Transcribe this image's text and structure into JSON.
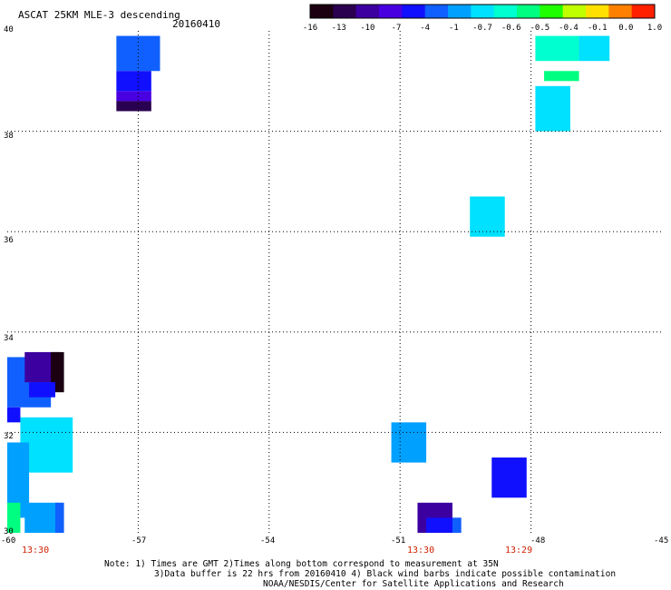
{
  "title": "ASCAT 25KM MLE-3 descending",
  "date": "20160410",
  "colorbar": {
    "colors": [
      "#1a0010",
      "#2a0050",
      "#3c00a0",
      "#4800e0",
      "#1010ff",
      "#1060ff",
      "#00a0ff",
      "#00e0ff",
      "#00ffd0",
      "#00ff80",
      "#20ff00",
      "#c0ff00",
      "#ffe000",
      "#ff8000",
      "#ff2000"
    ],
    "labels": [
      "-16",
      "-13",
      "-10",
      "-7",
      "-4",
      "-1",
      "-0.7",
      "-0.6",
      "-0.5",
      "-0.4",
      "-0.1",
      "0.0",
      "1.0"
    ]
  },
  "axes": {
    "lat_labels": [
      "40",
      "38",
      "36",
      "34",
      "32",
      "30"
    ],
    "lon_labels": [
      "-60",
      "-57",
      "-54",
      "-51",
      "-48",
      "-45"
    ]
  },
  "times": [
    "13:30",
    "13:30",
    "13:29"
  ],
  "notes": [
    "Note: 1) Times are GMT 2)Times along bottom correspond to measurement at 35N",
    "3)Data buffer is 22 hrs from 20160410 4) Black wind barbs indicate possible contamination",
    "NOAA/NESDIS/Center for Satellite Applications and Research"
  ],
  "data_cells": [
    {
      "lon": -57.5,
      "lat": 39.9,
      "w": 1.0,
      "h": 0.7,
      "color": "#1060ff"
    },
    {
      "lon": -57.5,
      "lat": 39.2,
      "w": 0.8,
      "h": 0.4,
      "color": "#1010ff"
    },
    {
      "lon": -57.5,
      "lat": 38.8,
      "w": 0.8,
      "h": 0.2,
      "color": "#4800e0"
    },
    {
      "lon": -57.5,
      "lat": 38.6,
      "w": 0.8,
      "h": 0.2,
      "color": "#2a0050"
    },
    {
      "lon": -47.9,
      "lat": 39.9,
      "w": 1.0,
      "h": 0.5,
      "color": "#00ffd0"
    },
    {
      "lon": -46.9,
      "lat": 39.9,
      "w": 0.7,
      "h": 0.5,
      "color": "#00e0ff"
    },
    {
      "lon": -47.7,
      "lat": 39.2,
      "w": 0.8,
      "h": 0.2,
      "color": "#00ff80"
    },
    {
      "lon": -47.9,
      "lat": 38.9,
      "w": 0.8,
      "h": 0.9,
      "color": "#00e0ff"
    },
    {
      "lon": -49.4,
      "lat": 36.7,
      "w": 0.8,
      "h": 0.8,
      "color": "#00e0ff"
    },
    {
      "lon": -60.0,
      "lat": 33.5,
      "w": 1.0,
      "h": 1.0,
      "color": "#1060ff"
    },
    {
      "lon": -59.6,
      "lat": 33.6,
      "w": 0.8,
      "h": 0.6,
      "color": "#3c00a0"
    },
    {
      "lon": -59.0,
      "lat": 33.6,
      "w": 0.3,
      "h": 0.8,
      "color": "#1a0010"
    },
    {
      "lon": -59.5,
      "lat": 33.0,
      "w": 0.6,
      "h": 0.3,
      "color": "#1010ff"
    },
    {
      "lon": -60.0,
      "lat": 32.5,
      "w": 0.3,
      "h": 0.3,
      "color": "#1010ff"
    },
    {
      "lon": -59.7,
      "lat": 32.3,
      "w": 1.2,
      "h": 1.1,
      "color": "#00e0ff"
    },
    {
      "lon": -60.0,
      "lat": 31.8,
      "w": 0.5,
      "h": 1.5,
      "color": "#00a0ff"
    },
    {
      "lon": -59.6,
      "lat": 30.6,
      "w": 0.8,
      "h": 0.6,
      "color": "#00a0ff"
    },
    {
      "lon": -58.9,
      "lat": 30.6,
      "w": 0.2,
      "h": 0.6,
      "color": "#1060ff"
    },
    {
      "lon": -60.0,
      "lat": 30.6,
      "w": 0.3,
      "h": 0.6,
      "color": "#00ff80"
    },
    {
      "lon": -51.2,
      "lat": 32.2,
      "w": 0.8,
      "h": 0.8,
      "color": "#00a0ff"
    },
    {
      "lon": -48.9,
      "lat": 31.5,
      "w": 0.8,
      "h": 0.8,
      "color": "#1010ff"
    },
    {
      "lon": -50.6,
      "lat": 30.6,
      "w": 0.8,
      "h": 0.6,
      "color": "#3c00a0"
    },
    {
      "lon": -50.4,
      "lat": 30.3,
      "w": 0.8,
      "h": 0.3,
      "color": "#1010ff"
    },
    {
      "lon": -49.8,
      "lat": 30.3,
      "w": 0.2,
      "h": 0.3,
      "color": "#1060ff"
    }
  ]
}
